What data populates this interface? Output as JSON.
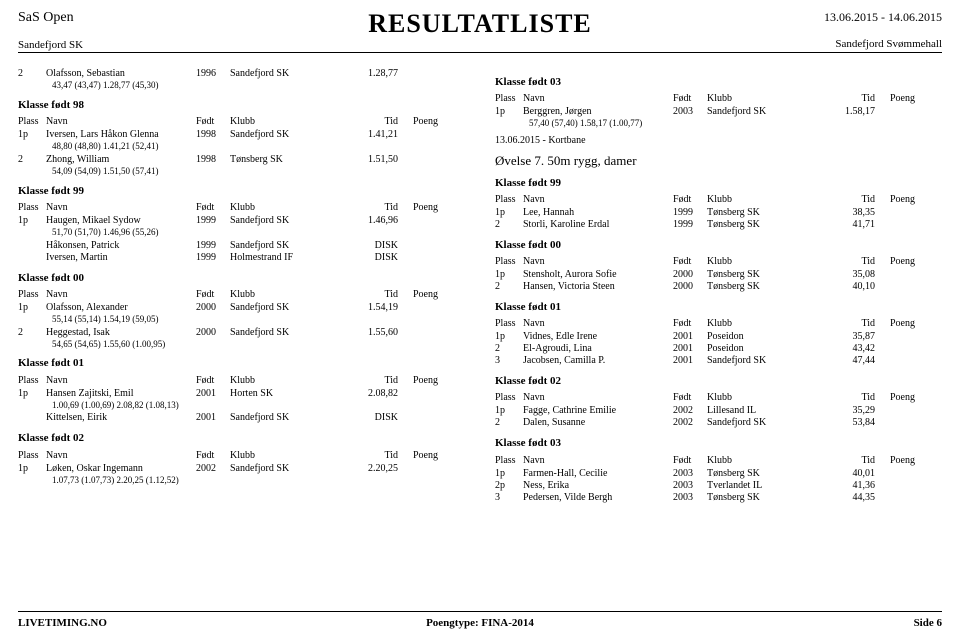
{
  "header": {
    "event": "SaS Open",
    "club": "Sandefjord SK",
    "title": "RESULTATLISTE",
    "dates": "13.06.2015 - 14.06.2015",
    "venue": "Sandefjord Svømmehall"
  },
  "labels": {
    "plass": "Plass",
    "navn": "Navn",
    "fodt": "Født",
    "klubb": "Klubb",
    "tid": "Tid",
    "poeng": "Poeng"
  },
  "left": {
    "top_row": {
      "pl": "2",
      "name": "Olafsson, Sebastian",
      "year": "1996",
      "club": "Sandefjord SK",
      "tid": "1.28,77"
    },
    "top_sub": "43,47 (43,47)      1.28,77 (45,30)",
    "c98": {
      "heading": "Klasse født 98",
      "rows": [
        {
          "pl": "1p",
          "name": "Iversen, Lars Håkon Glenna",
          "year": "1998",
          "club": "Sandefjord SK",
          "tid": "1.41,21",
          "sub": "48,80 (48,80)      1.41,21 (52,41)"
        },
        {
          "pl": "2",
          "name": "Zhong, William",
          "year": "1998",
          "club": "Tønsberg SK",
          "tid": "1.51,50",
          "sub": "54,09 (54,09)      1.51,50 (57,41)"
        }
      ]
    },
    "c99": {
      "heading": "Klasse født 99",
      "rows": [
        {
          "pl": "1p",
          "name": "Haugen, Mikael Sydow",
          "year": "1999",
          "club": "Sandefjord SK",
          "tid": "1.46,96",
          "sub": "51,70 (51,70)      1.46,96 (55,26)"
        },
        {
          "pl": "",
          "name": "Håkonsen, Patrick",
          "year": "1999",
          "club": "Sandefjord SK",
          "tid": "DISK"
        },
        {
          "pl": "",
          "name": "Iversen, Martin",
          "year": "1999",
          "club": "Holmestrand IF",
          "tid": "DISK"
        }
      ]
    },
    "c00": {
      "heading": "Klasse født 00",
      "rows": [
        {
          "pl": "1p",
          "name": "Olafsson, Alexander",
          "year": "2000",
          "club": "Sandefjord SK",
          "tid": "1.54,19",
          "sub": "55,14 (55,14)      1.54,19 (59,05)"
        },
        {
          "pl": "2",
          "name": "Heggestad, Isak",
          "year": "2000",
          "club": "Sandefjord SK",
          "tid": "1.55,60",
          "sub": "54,65 (54,65)      1.55,60 (1.00,95)"
        }
      ]
    },
    "c01": {
      "heading": "Klasse født 01",
      "rows": [
        {
          "pl": "1p",
          "name": "Hansen Zajitski, Emil",
          "year": "2001",
          "club": "Horten SK",
          "tid": "2.08,82",
          "sub": "1.00,69 (1.00,69)      2.08,82 (1.08,13)"
        },
        {
          "pl": "",
          "name": "Kittelsen, Eirik",
          "year": "2001",
          "club": "Sandefjord SK",
          "tid": "DISK"
        }
      ]
    },
    "c02": {
      "heading": "Klasse født 02",
      "rows": [
        {
          "pl": "1p",
          "name": "Løken, Oskar Ingemann",
          "year": "2002",
          "club": "Sandefjord SK",
          "tid": "2.20,25",
          "sub": "1.07,73 (1.07,73)      2.20,25 (1.12,52)"
        }
      ]
    }
  },
  "right": {
    "c03a": {
      "heading": "Klasse født 03",
      "rows": [
        {
          "pl": "1p",
          "name": "Berggren, Jørgen",
          "year": "2003",
          "club": "Sandefjord SK",
          "tid": "1.58,17",
          "sub": "57,40 (57,40)      1.58,17 (1.00,77)"
        }
      ]
    },
    "note": "13.06.2015 - Kortbane",
    "event_heading": "Øvelse 7. 50m rygg, damer",
    "c99": {
      "heading": "Klasse født 99",
      "rows": [
        {
          "pl": "1p",
          "name": "Lee, Hannah",
          "year": "1999",
          "club": "Tønsberg SK",
          "tid": "38,35"
        },
        {
          "pl": "2",
          "name": "Storli, Karoline Erdal",
          "year": "1999",
          "club": "Tønsberg SK",
          "tid": "41,71"
        }
      ]
    },
    "c00": {
      "heading": "Klasse født 00",
      "rows": [
        {
          "pl": "1p",
          "name": "Stensholt, Aurora Sofie",
          "year": "2000",
          "club": "Tønsberg SK",
          "tid": "35,08"
        },
        {
          "pl": "2",
          "name": "Hansen, Victoria Steen",
          "year": "2000",
          "club": "Tønsberg SK",
          "tid": "40,10"
        }
      ]
    },
    "c01": {
      "heading": "Klasse født 01",
      "rows": [
        {
          "pl": "1p",
          "name": "Vidnes, Edle Irene",
          "year": "2001",
          "club": "Poseidon",
          "tid": "35,87"
        },
        {
          "pl": "2",
          "name": "El-Agroudi, Lina",
          "year": "2001",
          "club": "Poseidon",
          "tid": "43,42"
        },
        {
          "pl": "3",
          "name": "Jacobsen, Camilla P.",
          "year": "2001",
          "club": "Sandefjord SK",
          "tid": "47,44"
        }
      ]
    },
    "c02": {
      "heading": "Klasse født 02",
      "rows": [
        {
          "pl": "1p",
          "name": "Fagge, Cathrine Emilie",
          "year": "2002",
          "club": "Lillesand IL",
          "tid": "35,29"
        },
        {
          "pl": "2",
          "name": "Dalen, Susanne",
          "year": "2002",
          "club": "Sandefjord SK",
          "tid": "53,84"
        }
      ]
    },
    "c03b": {
      "heading": "Klasse født 03",
      "rows": [
        {
          "pl": "1p",
          "name": "Farmen-Hall, Cecilie",
          "year": "2003",
          "club": "Tønsberg SK",
          "tid": "40,01"
        },
        {
          "pl": "2p",
          "name": "Ness, Erika",
          "year": "2003",
          "club": "Tverlandet IL",
          "tid": "41,36"
        },
        {
          "pl": "3",
          "name": "Pedersen, Vilde Bergh",
          "year": "2003",
          "club": "Tønsberg SK",
          "tid": "44,35"
        }
      ]
    }
  },
  "footer": {
    "left": "LIVETIMING.NO",
    "center": "Poengtype: FINA-2014",
    "right": "Side 6"
  }
}
